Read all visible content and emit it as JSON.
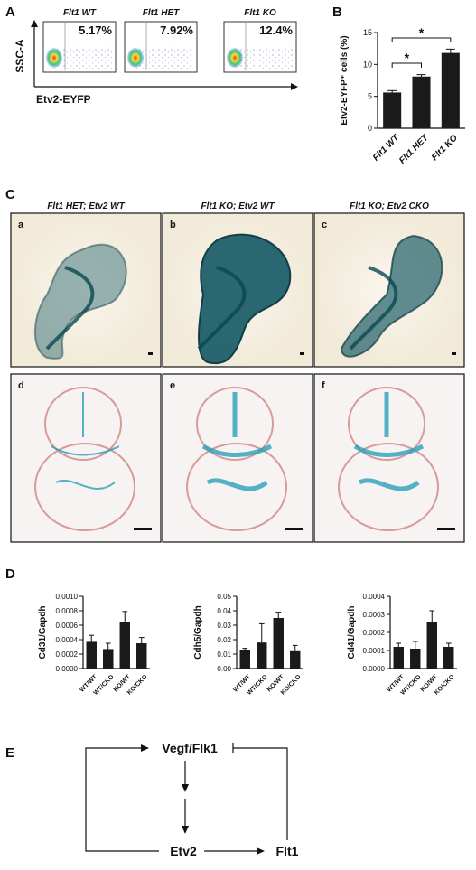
{
  "panel_labels": {
    "a": "A",
    "b": "B",
    "c": "C",
    "d": "D",
    "e": "E"
  },
  "flow": {
    "y_label": "SSC-A",
    "x_label": "Etv2-EYFP",
    "plots": [
      {
        "title": "Flt1 WT",
        "percent": "5.17%"
      },
      {
        "title": "Flt1 HET",
        "percent": "7.92%"
      },
      {
        "title": "Flt1 KO",
        "percent": "12.4%"
      }
    ]
  },
  "chart_data": [
    {
      "type": "bar",
      "ylabel": "Etv2-EYFP⁺ cells (%)",
      "categories": [
        "Flt1 WT",
        "Flt1 HET",
        "Flt1 KO"
      ],
      "values": [
        5.6,
        8.1,
        11.8
      ],
      "errors": [
        0.3,
        0.3,
        0.6
      ],
      "color": "#1a1a1a",
      "ylim": [
        0,
        15
      ],
      "yticks": [
        0,
        5,
        10,
        15
      ],
      "significance": [
        "*",
        "*"
      ]
    },
    {
      "type": "bar",
      "ylabel": "Cd31/Gapdh",
      "categories": [
        "WT/WT",
        "WT/CKO",
        "KO/WT",
        "KO/CKO"
      ],
      "values": [
        0.00037,
        0.00027,
        0.00065,
        0.00035
      ],
      "errors": [
        9e-05,
        8e-05,
        0.00014,
        8e-05
      ],
      "color": "#1a1a1a",
      "ylim": [
        0,
        0.001
      ],
      "yticks": [
        {
          "value": 0,
          "label": "0.0000"
        },
        0.0002,
        0.0004,
        0.0006,
        0.0008,
        {
          "value": 0.001,
          "label": "0.0010"
        }
      ]
    },
    {
      "type": "bar",
      "ylabel": "Cdh5/Gapdh",
      "categories": [
        "WT/WT",
        "WT/CKO",
        "KO/WT",
        "KO/CKO"
      ],
      "values": [
        0.013,
        0.018,
        0.035,
        0.012
      ],
      "errors": [
        0.001,
        0.013,
        0.004,
        0.004
      ],
      "color": "#1a1a1a",
      "ylim": [
        0,
        0.05
      ],
      "yticks": [
        {
          "value": 0,
          "label": "0.00"
        },
        0.01,
        0.02,
        0.03,
        0.04,
        0.05
      ]
    },
    {
      "type": "bar",
      "ylabel": "Cd41/Gapdh",
      "categories": [
        "WT/WT",
        "WT/CKO",
        "KO/WT",
        "KO/CKO"
      ],
      "values": [
        0.00012,
        0.00011,
        0.00026,
        0.00012
      ],
      "errors": [
        2e-05,
        4e-05,
        6e-05,
        2e-05
      ],
      "color": "#1a1a1a",
      "ylim": [
        0,
        0.0004
      ],
      "yticks": [
        {
          "value": 0,
          "label": "0.0000"
        },
        0.0001,
        0.0002,
        0.0003,
        0.0004
      ]
    }
  ],
  "images": {
    "columns": [
      "Flt1 HET; Etv2 WT",
      "Flt1 KO; Etv2 WT",
      "Flt1 KO; Etv2 CKO"
    ],
    "labels": [
      "a",
      "b",
      "c",
      "d",
      "e",
      "f"
    ]
  },
  "diagram": {
    "nodes": [
      "Vegf/Flk1",
      "Etv2",
      "Flt1"
    ]
  }
}
